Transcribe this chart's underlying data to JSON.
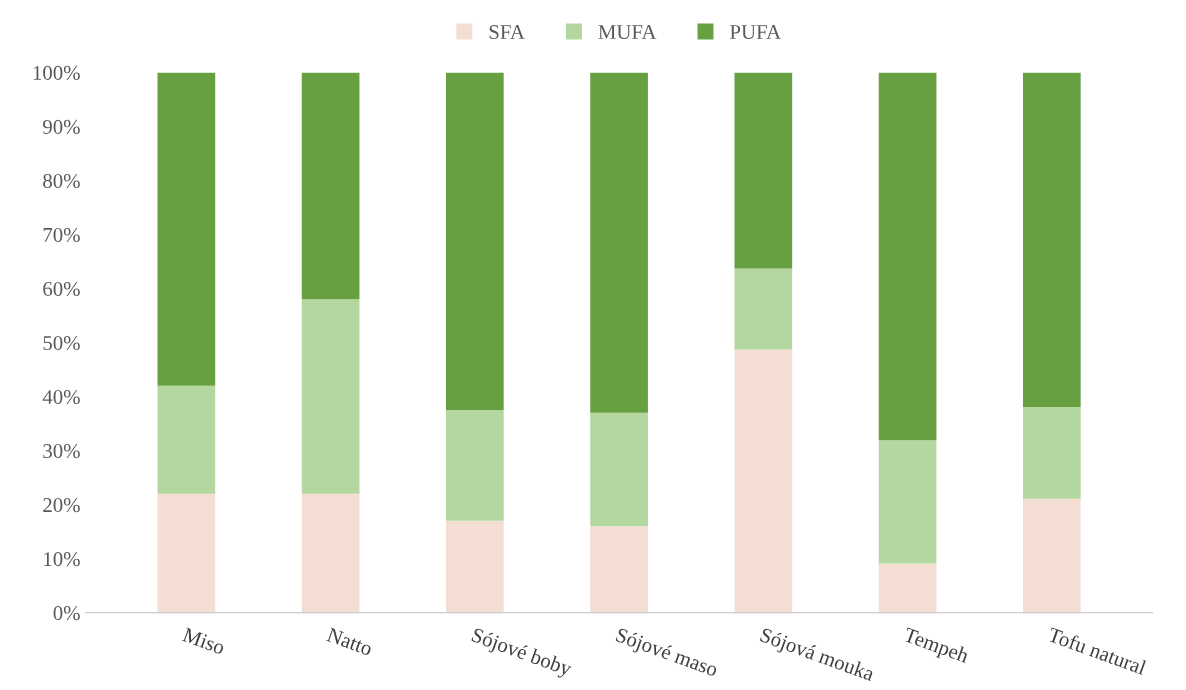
{
  "chart_data": {
    "type": "bar",
    "stacked": true,
    "categories": [
      "Miso",
      "Natto",
      "Sójové boby",
      "Sójové maso",
      "Sójová mouka",
      "Tempeh",
      "Tofu natural"
    ],
    "series": [
      {
        "name": "SFA",
        "color": "#f4ded4",
        "values": [
          22,
          22,
          17,
          16,
          48.7,
          9.1,
          21.1
        ]
      },
      {
        "name": "MUFA",
        "color": "#b4d7a0",
        "values": [
          20,
          36,
          20.5,
          21,
          15,
          22.8,
          17
        ]
      },
      {
        "name": "PUFA",
        "color": "#67a041",
        "values": [
          58,
          42,
          62.5,
          63,
          36.3,
          68.1,
          61.9
        ]
      }
    ],
    "ylim": [
      0,
      100
    ],
    "yticks": [
      {
        "value": 0,
        "label": "0%"
      },
      {
        "value": 10,
        "label": "10%"
      },
      {
        "value": 20,
        "label": "20%"
      },
      {
        "value": 30,
        "label": "30%"
      },
      {
        "value": 40,
        "label": "40%"
      },
      {
        "value": 50,
        "label": "50%"
      },
      {
        "value": 60,
        "label": "60%"
      },
      {
        "value": 70,
        "label": "70%"
      },
      {
        "value": 80,
        "label": "80%"
      },
      {
        "value": 90,
        "label": "90%"
      },
      {
        "value": 100,
        "label": "100%"
      }
    ],
    "grid": false,
    "legend": "top"
  }
}
